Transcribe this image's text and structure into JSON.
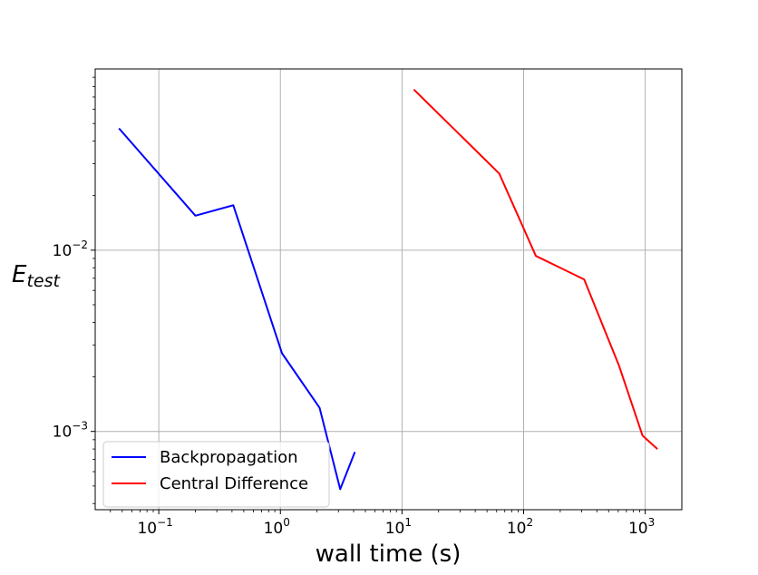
{
  "chart_data": {
    "type": "line",
    "title": "",
    "xlabel": "wall time (s)",
    "ylabel_main": "E",
    "ylabel_sub": "test",
    "xscale": "log",
    "yscale": "log",
    "xlim": [
      0.03,
      2000
    ],
    "ylim": [
      0.00037,
      0.1
    ],
    "grid": true,
    "legend_position": "lower-left",
    "xticks": [
      {
        "value": 0.1,
        "base": "10",
        "exp": "−1"
      },
      {
        "value": 1,
        "base": "10",
        "exp": "0"
      },
      {
        "value": 10,
        "base": "10",
        "exp": "1"
      },
      {
        "value": 100,
        "base": "10",
        "exp": "2"
      },
      {
        "value": 1000,
        "base": "10",
        "exp": "3"
      }
    ],
    "yticks": [
      {
        "value": 0.001,
        "base": "10",
        "exp": "−3"
      },
      {
        "value": 0.01,
        "base": "10",
        "exp": "−2"
      }
    ],
    "series": [
      {
        "name": "Backpropagation",
        "color": "#0000ff",
        "x": [
          0.047,
          0.2,
          0.41,
          1.03,
          2.1,
          3.1,
          4.1
        ],
        "y": [
          0.047,
          0.0155,
          0.0177,
          0.0027,
          0.00135,
          0.00048,
          0.00077
        ]
      },
      {
        "name": "Central Difference",
        "color": "#ff0000",
        "x": [
          12.5,
          63,
          126,
          315,
          610,
          950,
          1260
        ],
        "y": [
          0.077,
          0.0265,
          0.0093,
          0.0069,
          0.0023,
          0.00095,
          0.0008
        ]
      }
    ]
  }
}
